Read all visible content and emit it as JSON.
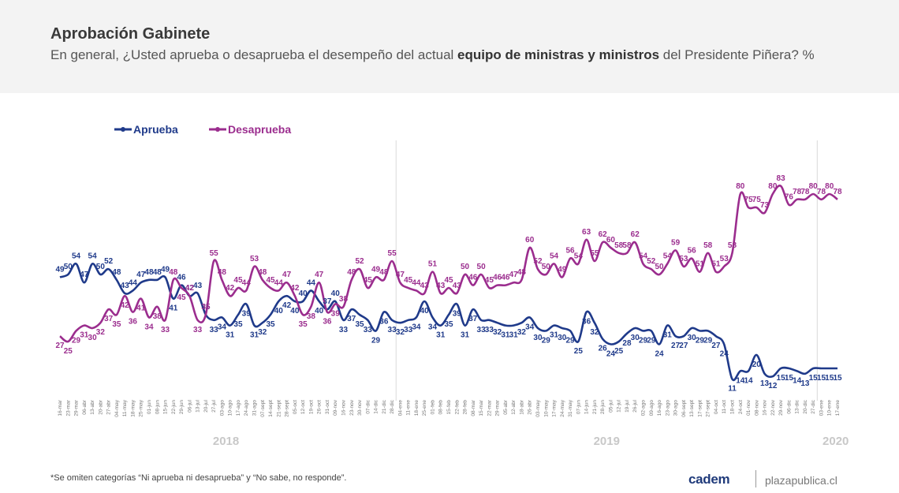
{
  "header": {
    "title": "Aprobación Gabinete",
    "subtitle_pre": "En general, ¿Usted aprueba o desaprueba el desempeño del actual ",
    "subtitle_bold": "equipo de ministras y ministros",
    "subtitle_post": " del Presidente Piñera? %"
  },
  "footer": {
    "note": "*Se omiten categorías “Ni aprueba ni desaprueba” y “No sabe, no responde”.",
    "brand": "cadem",
    "site": "plazapublica.cl"
  },
  "colors": {
    "aprueba": "#1f3a8a",
    "desaprueba": "#9b2d8e",
    "grid": "#d9d9d9",
    "year": "#c8c8c8"
  },
  "chart_data": {
    "type": "line",
    "title": "Aprobación Gabinete",
    "legend_position": "top-left",
    "ylim": [
      0,
      100
    ],
    "years": [
      "2018",
      "2019",
      "2020"
    ],
    "x": [
      "16-mar",
      "23-mar",
      "29-mar",
      "06-abr",
      "13-abr",
      "20-abr",
      "27-abr",
      "04-may",
      "11-may",
      "18-may",
      "25-may",
      "01-jun",
      "08-jun",
      "15-jun",
      "22-jun",
      "29-jun",
      "06-jul",
      "13-jul",
      "20-jul",
      "27-jul",
      "03-ago",
      "10-ago",
      "17-ago",
      "24-ago",
      "31-ago",
      "07-sept",
      "14-sept",
      "21-sept",
      "28-sept",
      "05-oct",
      "12-oct",
      "19-oct",
      "26-oct",
      "31-oct",
      "09-nov",
      "16-nov",
      "23-nov",
      "30-nov",
      "07-dic",
      "14-dic",
      "21-dic",
      "28-dic",
      "04-ene",
      "11-ene",
      "18-ene",
      "25-ene",
      "01-feb",
      "08-feb",
      "15-feb",
      "22-feb",
      "28-feb",
      "08-mar",
      "15-mar",
      "22-mar",
      "29-mar",
      "05-abr",
      "12-abr",
      "18-abr",
      "26-abr",
      "03-may",
      "10-may",
      "17-may",
      "24-may",
      "31-may",
      "07-jun",
      "14-jun",
      "21-jun",
      "28-jun",
      "05-jul",
      "12-jul",
      "19-jul",
      "26-jul",
      "02-ago",
      "09-ago",
      "16-ago",
      "23-ago",
      "30-ago",
      "06-sept",
      "13-sept",
      "17-sept",
      "27-sept",
      "04-oct",
      "11-oct",
      "18-oct",
      "24-oct",
      "01-nov",
      "08-nov",
      "16-nov",
      "22-nov",
      "29-nov",
      "06-dic",
      "13-dic",
      "20-dic",
      "27-dic",
      "03-ene",
      "10-ene",
      "17-ene"
    ],
    "series": [
      {
        "name": "Aprueba",
        "values": [
          49,
          50,
          54,
          47,
          54,
          50,
          52,
          48,
          43,
          44,
          47,
          48,
          48,
          49,
          41,
          46,
          42,
          43,
          35,
          33,
          34,
          31,
          35,
          39,
          31,
          32,
          35,
          40,
          42,
          40,
          40,
          44,
          40,
          37,
          40,
          33,
          37,
          35,
          33,
          29,
          36,
          33,
          32,
          33,
          34,
          40,
          34,
          31,
          35,
          39,
          31,
          37,
          33,
          33,
          32,
          31,
          31,
          32,
          34,
          30,
          29,
          31,
          30,
          29,
          25,
          36,
          32,
          26,
          24,
          25,
          28,
          30,
          29,
          29,
          24,
          31,
          27,
          27,
          30,
          29,
          29,
          27,
          24,
          11,
          14,
          14,
          20,
          13,
          12,
          15,
          15,
          14,
          13,
          15,
          15,
          15,
          15
        ]
      },
      {
        "name": "Desaprueba",
        "values": [
          27,
          25,
          29,
          31,
          30,
          32,
          37,
          35,
          42,
          36,
          41,
          34,
          38,
          33,
          48,
          45,
          42,
          33,
          35,
          55,
          48,
          42,
          45,
          44,
          53,
          48,
          45,
          44,
          47,
          42,
          35,
          38,
          47,
          36,
          39,
          38,
          48,
          52,
          45,
          49,
          48,
          55,
          47,
          45,
          44,
          43,
          51,
          43,
          45,
          43,
          50,
          46,
          50,
          45,
          46,
          46,
          47,
          48,
          60,
          52,
          50,
          54,
          49,
          56,
          54,
          63,
          55,
          62,
          60,
          58,
          58,
          62,
          54,
          52,
          50,
          54,
          59,
          53,
          56,
          51,
          58,
          51,
          53,
          58,
          80,
          75,
          75,
          73,
          80,
          83,
          76,
          78,
          78,
          80,
          78,
          80,
          78
        ]
      }
    ]
  }
}
